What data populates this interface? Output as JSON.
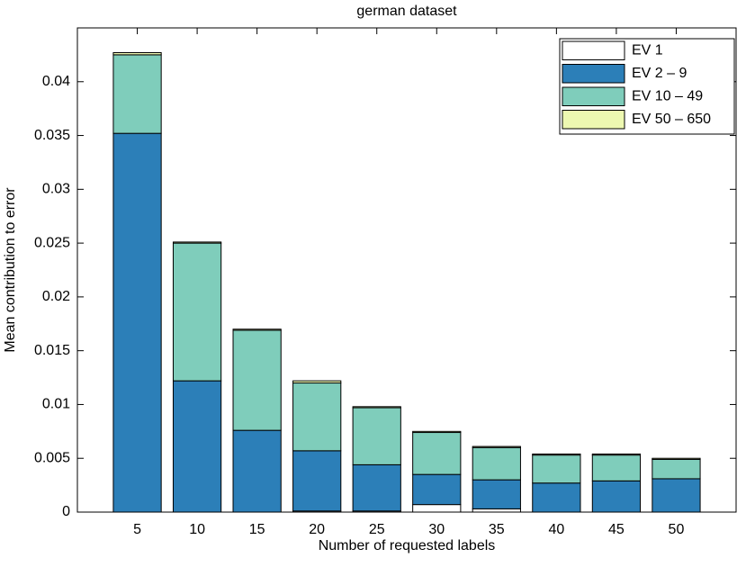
{
  "chart_data": {
    "type": "bar",
    "title": "german dataset",
    "x_label": "Number of requested labels",
    "y_label": "Mean contribution to error",
    "x": [
      5,
      10,
      15,
      20,
      25,
      30,
      35,
      40,
      45,
      50
    ],
    "series": [
      {
        "name": "EV 1",
        "color": "#ffffff",
        "values": [
          0,
          0,
          0,
          0.0001,
          0.0001,
          0.0007,
          0.0003,
          0,
          0,
          0
        ]
      },
      {
        "name": "EV 2 – 9",
        "color": "#2c7fb8",
        "values": [
          0.0352,
          0.0122,
          0.0076,
          0.0056,
          0.0043,
          0.0028,
          0.0027,
          0.0027,
          0.0029,
          0.0031
        ]
      },
      {
        "name": "EV 10 – 49",
        "color": "#7fcdbb",
        "values": [
          0.0073,
          0.0128,
          0.0093,
          0.0063,
          0.0053,
          0.0039,
          0.003,
          0.0026,
          0.0024,
          0.0018
        ]
      },
      {
        "name": "EV 50 – 650",
        "color": "#edf8b1",
        "values": [
          0.0002,
          0.0001,
          0.0001,
          0.0002,
          0.0001,
          0.0001,
          0.0001,
          0.0001,
          0.0001,
          0.0001
        ]
      }
    ],
    "xlim": [
      0,
      55
    ],
    "xticks": [
      5,
      10,
      15,
      20,
      25,
      30,
      35,
      40,
      45,
      50
    ],
    "ylim": [
      0,
      0.045
    ],
    "yticks": [
      0,
      0.005,
      0.01,
      0.015,
      0.02,
      0.025,
      0.03,
      0.035,
      0.04
    ],
    "stacked": true,
    "grid": false,
    "legend": "upper right"
  }
}
